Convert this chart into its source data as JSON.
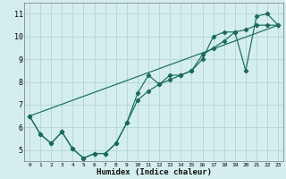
{
  "xlabel": "Humidex (Indice chaleur)",
  "bg_color": "#d4eeee",
  "grid_color": "#b8d8d8",
  "line_color": "#1a6b5a",
  "xlim": [
    -0.5,
    23.5
  ],
  "ylim": [
    4.5,
    11.5
  ],
  "xticks": [
    0,
    1,
    2,
    3,
    4,
    5,
    6,
    7,
    8,
    9,
    10,
    11,
    12,
    13,
    14,
    15,
    16,
    17,
    18,
    19,
    20,
    21,
    22,
    23
  ],
  "yticks": [
    5,
    6,
    7,
    8,
    9,
    10,
    11
  ],
  "line1_x": [
    0,
    1,
    2,
    3,
    4,
    5,
    6,
    7,
    8,
    9,
    10,
    11,
    12,
    13,
    14,
    15,
    16,
    17,
    18,
    19,
    20,
    21,
    22,
    23
  ],
  "line1_y": [
    6.5,
    5.7,
    5.3,
    5.8,
    5.05,
    4.65,
    4.85,
    4.85,
    5.3,
    6.2,
    7.5,
    8.3,
    7.9,
    8.3,
    8.3,
    8.5,
    9.0,
    10.0,
    10.2,
    10.2,
    8.5,
    10.9,
    11.0,
    10.5
  ],
  "line2_x": [
    0,
    1,
    2,
    3,
    4,
    5,
    6,
    7,
    8,
    9,
    10,
    11,
    12,
    13,
    14,
    15,
    16,
    17,
    18,
    19,
    20,
    21,
    22,
    23
  ],
  "line2_y": [
    6.5,
    5.7,
    5.3,
    5.8,
    5.05,
    4.65,
    4.85,
    4.85,
    5.3,
    6.2,
    7.2,
    7.6,
    7.9,
    8.1,
    8.3,
    8.5,
    9.2,
    9.5,
    9.8,
    10.2,
    10.3,
    10.5,
    10.5,
    10.5
  ],
  "line3_x": [
    0,
    23
  ],
  "line3_y": [
    6.5,
    10.5
  ]
}
